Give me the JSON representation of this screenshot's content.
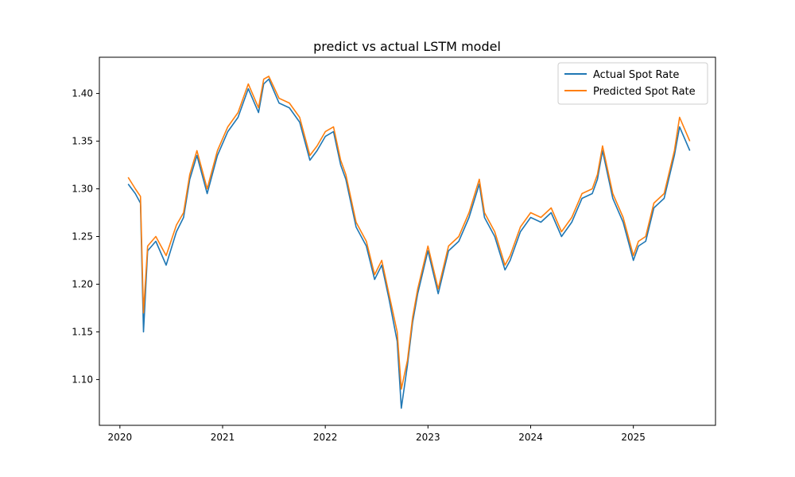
{
  "chart_data": {
    "type": "line",
    "title": "predict vs actual LSTM model",
    "xlabel": "",
    "ylabel": "",
    "grid": false,
    "legend_position": "upper-right",
    "xlim": [
      2019.8,
      2025.8
    ],
    "ylim": [
      1.052,
      1.438
    ],
    "x_ticks": [
      2020,
      2021,
      2022,
      2023,
      2024,
      2025
    ],
    "x_tick_labels": [
      "2020",
      "2021",
      "2022",
      "2023",
      "2024",
      "2025"
    ],
    "y_ticks": [
      1.1,
      1.15,
      1.2,
      1.25,
      1.3,
      1.35,
      1.4
    ],
    "y_tick_labels": [
      "1.10",
      "1.15",
      "1.20",
      "1.25",
      "1.30",
      "1.35",
      "1.40"
    ],
    "x": [
      2020.08,
      2020.15,
      2020.2,
      2020.23,
      2020.27,
      2020.35,
      2020.45,
      2020.55,
      2020.62,
      2020.68,
      2020.75,
      2020.85,
      2020.95,
      2021.05,
      2021.15,
      2021.25,
      2021.35,
      2021.4,
      2021.45,
      2021.55,
      2021.65,
      2021.75,
      2021.85,
      2021.92,
      2022.0,
      2022.08,
      2022.15,
      2022.2,
      2022.3,
      2022.4,
      2022.48,
      2022.55,
      2022.62,
      2022.7,
      2022.74,
      2022.8,
      2022.85,
      2022.9,
      2023.0,
      2023.1,
      2023.2,
      2023.3,
      2023.4,
      2023.5,
      2023.55,
      2023.65,
      2023.75,
      2023.8,
      2023.9,
      2024.0,
      2024.1,
      2024.2,
      2024.3,
      2024.4,
      2024.5,
      2024.6,
      2024.65,
      2024.7,
      2024.8,
      2024.9,
      2025.0,
      2025.05,
      2025.12,
      2025.2,
      2025.3,
      2025.4,
      2025.45,
      2025.55
    ],
    "series": [
      {
        "name": "Actual Spot Rate",
        "color": "#1f77b4",
        "values": [
          1.305,
          1.295,
          1.285,
          1.15,
          1.235,
          1.245,
          1.22,
          1.255,
          1.27,
          1.31,
          1.335,
          1.295,
          1.335,
          1.36,
          1.375,
          1.405,
          1.38,
          1.41,
          1.415,
          1.39,
          1.385,
          1.37,
          1.33,
          1.34,
          1.355,
          1.36,
          1.325,
          1.31,
          1.26,
          1.24,
          1.205,
          1.22,
          1.185,
          1.14,
          1.07,
          1.115,
          1.16,
          1.19,
          1.235,
          1.19,
          1.235,
          1.245,
          1.27,
          1.305,
          1.27,
          1.25,
          1.215,
          1.225,
          1.255,
          1.27,
          1.265,
          1.275,
          1.25,
          1.265,
          1.29,
          1.295,
          1.31,
          1.34,
          1.29,
          1.265,
          1.225,
          1.24,
          1.245,
          1.28,
          1.29,
          1.335,
          1.365,
          1.34
        ]
      },
      {
        "name": "Predicted Spot Rate",
        "color": "#ff7f0e",
        "values": [
          1.312,
          1.3,
          1.292,
          1.17,
          1.24,
          1.25,
          1.23,
          1.262,
          1.275,
          1.315,
          1.34,
          1.3,
          1.34,
          1.365,
          1.38,
          1.41,
          1.385,
          1.415,
          1.418,
          1.395,
          1.39,
          1.375,
          1.335,
          1.345,
          1.36,
          1.365,
          1.33,
          1.315,
          1.265,
          1.245,
          1.21,
          1.225,
          1.19,
          1.15,
          1.09,
          1.12,
          1.165,
          1.195,
          1.24,
          1.195,
          1.24,
          1.25,
          1.275,
          1.31,
          1.275,
          1.255,
          1.22,
          1.23,
          1.26,
          1.275,
          1.27,
          1.28,
          1.255,
          1.27,
          1.295,
          1.3,
          1.315,
          1.345,
          1.295,
          1.27,
          1.23,
          1.245,
          1.25,
          1.285,
          1.295,
          1.34,
          1.375,
          1.35
        ]
      }
    ]
  }
}
